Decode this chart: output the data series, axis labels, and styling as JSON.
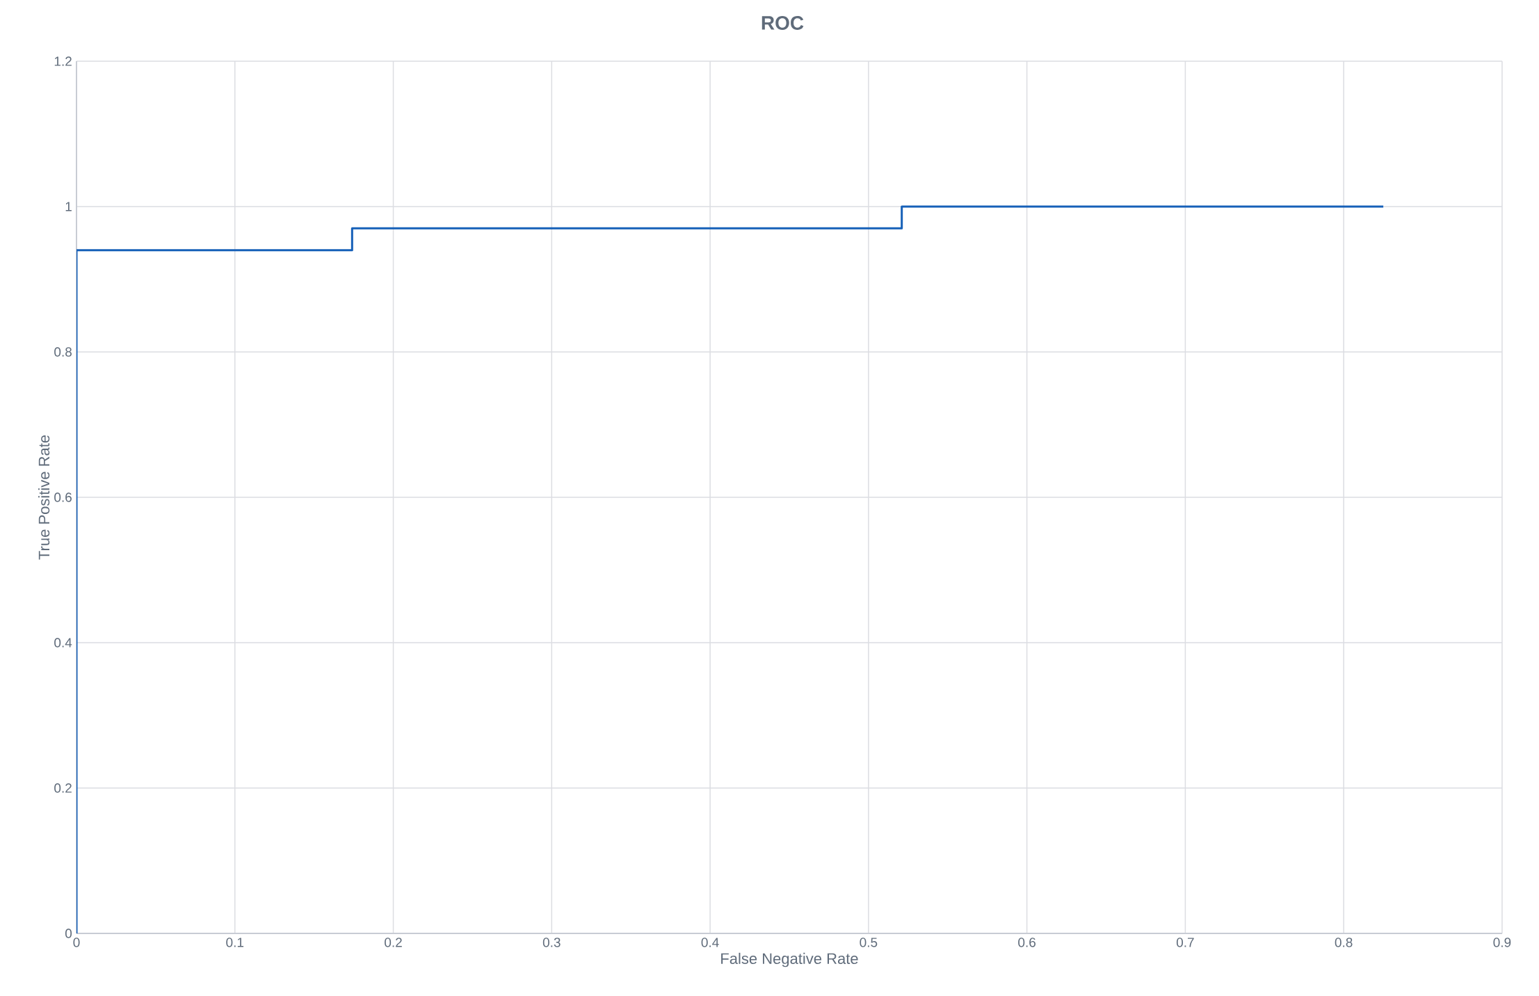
{
  "chart_data": {
    "type": "step",
    "title": "ROC",
    "xlabel": "False Negative Rate",
    "ylabel": "True Positive Rate",
    "x": [
      0,
      0,
      0.174,
      0.521,
      0.825
    ],
    "values": [
      0,
      0.94,
      0.97,
      1,
      1
    ],
    "color": "#1660b8",
    "xlim": [
      0,
      0.9
    ],
    "xticks": [
      0,
      0.1,
      0.2,
      0.3,
      0.4,
      0.5,
      0.6,
      0.7,
      0.8,
      0.9
    ],
    "ylim": [
      0,
      1.2
    ],
    "yticks": [
      0,
      0.2,
      0.4,
      0.6,
      0.8,
      1,
      1.2
    ],
    "grid": true
  }
}
